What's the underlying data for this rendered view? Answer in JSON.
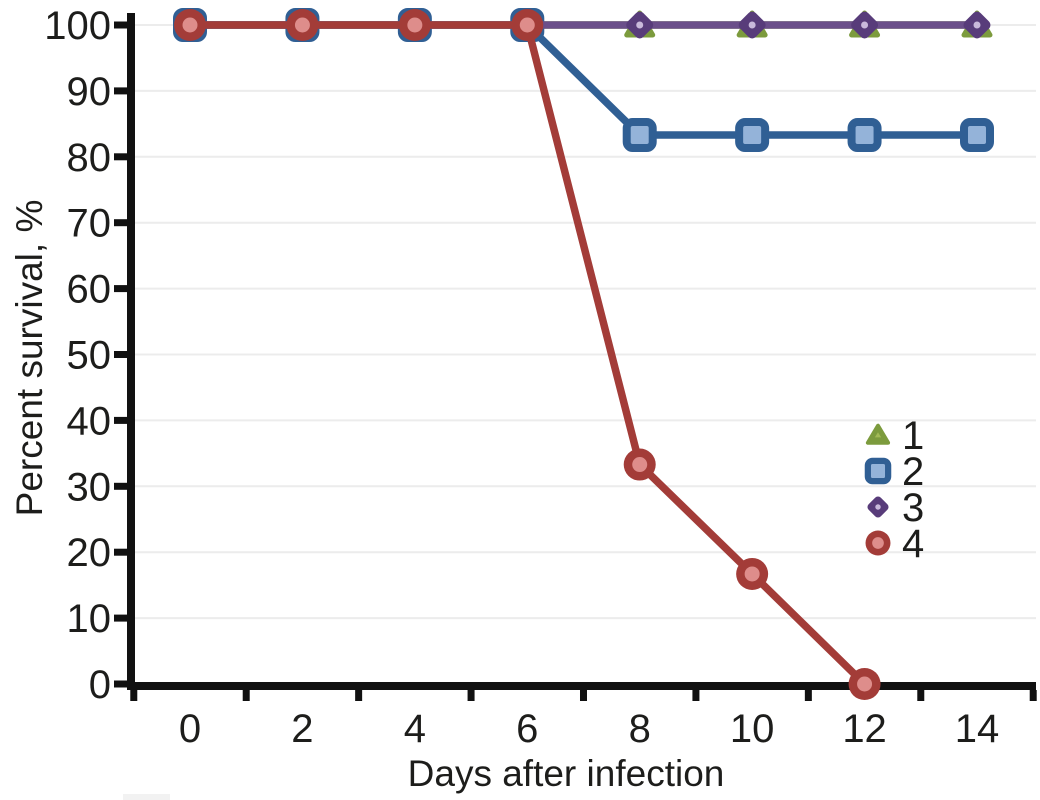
{
  "figure": {
    "background": "#ffffff",
    "text_color": "#1d1d1b",
    "axis_color": "#111111",
    "grid_color": "#ececec"
  },
  "chart_data": {
    "type": "line",
    "title": "",
    "xlabel": "Days after infection",
    "ylabel": "Percent survival, %",
    "x": [
      0,
      2,
      4,
      6,
      8,
      10,
      12,
      14
    ],
    "x_tick_labels": [
      "0",
      "2",
      "4",
      "6",
      "8",
      "10",
      "12",
      "14"
    ],
    "y_ticks": [
      0,
      10,
      20,
      30,
      40,
      50,
      60,
      70,
      80,
      90,
      100
    ],
    "y_tick_labels": [
      "0",
      "10",
      "20",
      "30",
      "40",
      "50",
      "60",
      "70",
      "80",
      "90",
      "100"
    ],
    "xlim": [
      -1,
      15
    ],
    "ylim": [
      0,
      100
    ],
    "grid": "horizontal",
    "legend_position": "inside-right-middle",
    "legend_labels": [
      "1",
      "2",
      "3",
      "4"
    ],
    "series": [
      {
        "name": "1",
        "marker": "triangle",
        "color": "#7C9B3D",
        "fill": "#A9C05A",
        "values": [
          100,
          100,
          100,
          100,
          100,
          100,
          100,
          100
        ]
      },
      {
        "name": "2",
        "marker": "square",
        "color": "#305F94",
        "fill": "#94B3D9",
        "values": [
          100,
          100,
          100,
          100,
          83.3,
          83.3,
          83.3,
          83.3
        ]
      },
      {
        "name": "3",
        "marker": "diamond",
        "color": "#6B4F8A",
        "marker_color": "#583C7A",
        "fill": "#C9B9DB",
        "values": [
          100,
          100,
          100,
          100,
          100,
          100,
          100,
          100
        ]
      },
      {
        "name": "4",
        "marker": "circle",
        "color": "#A33C38",
        "fill": "#DE8D8B",
        "values": [
          100,
          100,
          100,
          100,
          33.3,
          16.7,
          0,
          null
        ]
      }
    ]
  }
}
